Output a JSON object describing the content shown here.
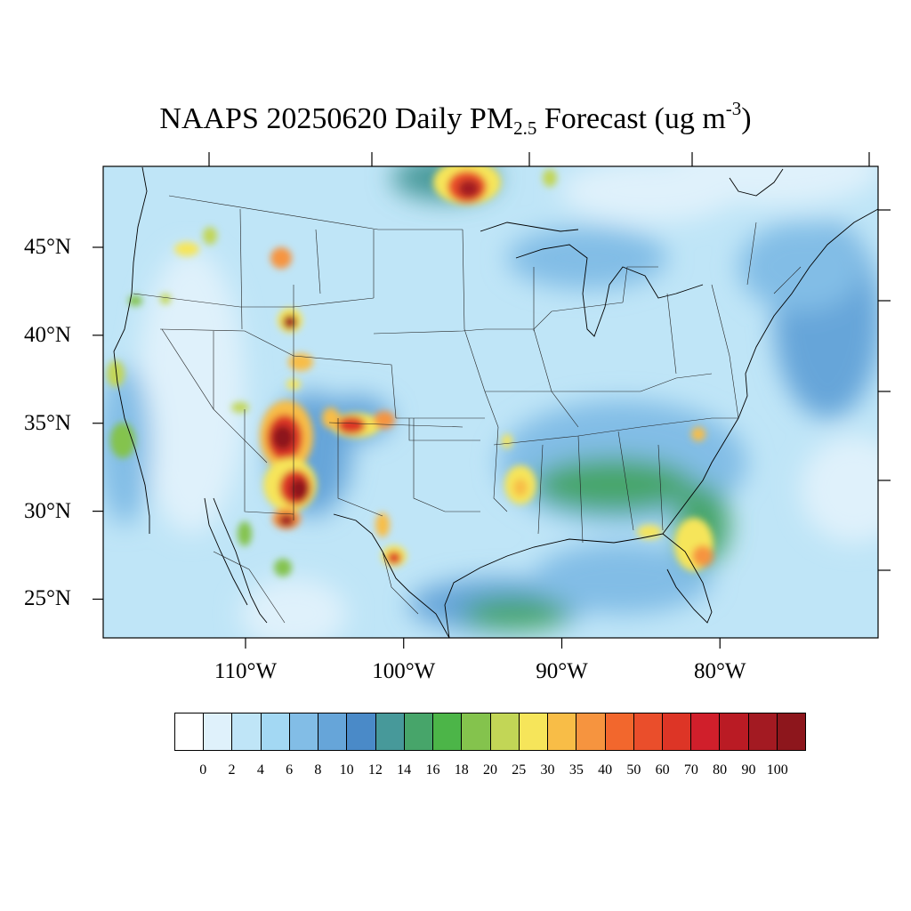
{
  "title": {
    "main": "NAAPS 20250620 Daily PM",
    "subscript": "2.5",
    "after_subscript": " Forecast (ug m",
    "superscript": "-3",
    "close": ")"
  },
  "map": {
    "lon_range": [
      -119,
      -70
    ],
    "lat_range": [
      22.8,
      49.6
    ],
    "lat_ticks": [
      {
        "value": 45,
        "label": "45°N"
      },
      {
        "value": 40,
        "label": "40°N"
      },
      {
        "value": 35,
        "label": "35°N"
      },
      {
        "value": 30,
        "label": "30°N"
      },
      {
        "value": 25,
        "label": "25°N"
      }
    ],
    "lon_ticks": [
      {
        "value": -110,
        "label": "110°W"
      },
      {
        "value": -100,
        "label": "100°W"
      },
      {
        "value": -90,
        "label": "90°W"
      },
      {
        "value": -80,
        "label": "80°W"
      }
    ]
  },
  "colorbar": {
    "labels": [
      "0",
      "2",
      "4",
      "6",
      "8",
      "10",
      "12",
      "14",
      "16",
      "18",
      "20",
      "25",
      "30",
      "35",
      "40",
      "50",
      "60",
      "70",
      "80",
      "90",
      "100"
    ],
    "colors": [
      "#ffffff",
      "#dff1fb",
      "#bfe5f7",
      "#a3d8f3",
      "#82bde6",
      "#66a5d9",
      "#4a8ac8",
      "#47999a",
      "#47a56a",
      "#4cb548",
      "#84c34d",
      "#c2d656",
      "#f6e55a",
      "#f8bd47",
      "#f6943f",
      "#f2672d",
      "#ea4e2b",
      "#dd3526",
      "#d01f2b",
      "#ba1b24",
      "#a31a22",
      "#8d161c"
    ]
  }
}
